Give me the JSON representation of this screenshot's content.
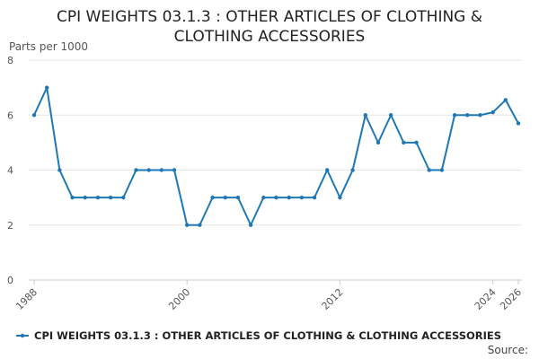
{
  "chart_data": {
    "type": "line",
    "title_lines": [
      "CPI WEIGHTS 03.1.3 : OTHER ARTICLES OF CLOTHING &",
      "CLOTHING ACCESSORIES"
    ],
    "ylabel": "Parts per 1000",
    "ylim": [
      0,
      8
    ],
    "yticks": [
      0,
      2,
      4,
      6,
      8
    ],
    "xlim": [
      1988,
      2026
    ],
    "xticks": [
      1988,
      2000,
      2012,
      2024,
      2026
    ],
    "grid": "horizontal",
    "legend_position": "bottom",
    "source_label": "Source:",
    "series": [
      {
        "name": "CPI WEIGHTS 03.1.3 : OTHER ARTICLES OF CLOTHING & CLOTHING ACCESSORIES",
        "color": "#1f77b4",
        "x": [
          1988,
          1989,
          1990,
          1991,
          1992,
          1993,
          1994,
          1995,
          1996,
          1997,
          1998,
          1999,
          2000,
          2001,
          2002,
          2003,
          2004,
          2005,
          2006,
          2007,
          2008,
          2009,
          2010,
          2011,
          2012,
          2013,
          2014,
          2015,
          2016,
          2017,
          2018,
          2019,
          2020,
          2021,
          2022,
          2023,
          2024,
          2025,
          2026
        ],
        "values": [
          6,
          7,
          4,
          3,
          3,
          3,
          3,
          3,
          4,
          4,
          4,
          4,
          2,
          2,
          3,
          3,
          3,
          2,
          3,
          3,
          3,
          3,
          3,
          4,
          3,
          4,
          6,
          5,
          6,
          5,
          5,
          4,
          4,
          6,
          6,
          6,
          6.1,
          6.55,
          5.7
        ]
      }
    ]
  }
}
